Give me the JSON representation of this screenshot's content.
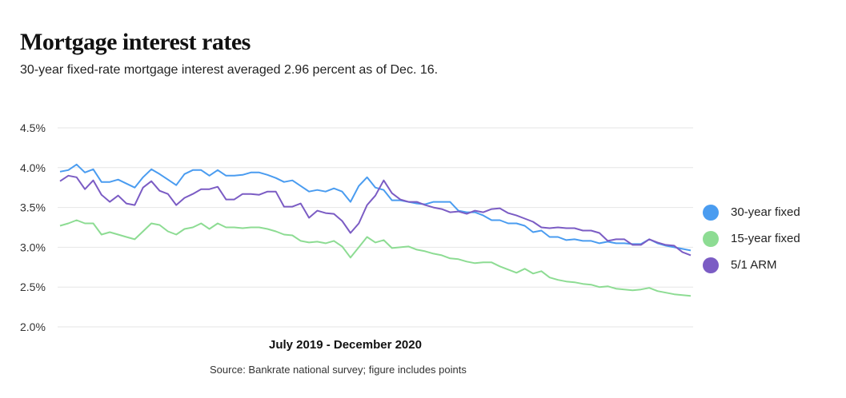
{
  "title": "Mortgage interest rates",
  "subtitle": "30-year fixed-rate mortgage interest averaged 2.96 percent as of Dec. 16.",
  "source": "Source: Bankrate national survey; figure includes points",
  "chart_data": {
    "type": "line",
    "title": "Mortgage interest rates",
    "subtitle": "30-year fixed-rate mortgage interest averaged 2.96 percent as of Dec. 16.",
    "xlabel": "July 2019 - December 2020",
    "ylabel": "",
    "ylim": [
      2.0,
      4.5
    ],
    "yticks": [
      4.5,
      4.0,
      3.5,
      3.0,
      2.5,
      2.0
    ],
    "ytick_labels": [
      "4.5%",
      "4.0%",
      "3.5%",
      "3.0%",
      "2.5%",
      "2.0%"
    ],
    "grid": true,
    "legend_position": "right",
    "series": [
      {
        "name": "30-year fixed",
        "color": "#4a9cf0",
        "values": [
          3.95,
          3.97,
          4.04,
          3.94,
          3.98,
          3.82,
          3.82,
          3.85,
          3.8,
          3.75,
          3.88,
          3.98,
          3.92,
          3.85,
          3.78,
          3.92,
          3.97,
          3.97,
          3.9,
          3.97,
          3.9,
          3.9,
          3.91,
          3.94,
          3.94,
          3.91,
          3.87,
          3.82,
          3.84,
          3.77,
          3.7,
          3.72,
          3.7,
          3.74,
          3.7,
          3.57,
          3.77,
          3.88,
          3.75,
          3.72,
          3.59,
          3.59,
          3.57,
          3.55,
          3.54,
          3.57,
          3.57,
          3.57,
          3.46,
          3.44,
          3.44,
          3.4,
          3.34,
          3.34,
          3.3,
          3.3,
          3.27,
          3.19,
          3.21,
          3.13,
          3.13,
          3.09,
          3.1,
          3.08,
          3.08,
          3.05,
          3.07,
          3.05,
          3.05,
          3.04,
          3.04,
          3.1,
          3.05,
          3.02,
          3.0,
          2.98,
          2.96
        ]
      },
      {
        "name": "15-year fixed",
        "color": "#8ddc93",
        "values": [
          3.27,
          3.3,
          3.34,
          3.3,
          3.3,
          3.16,
          3.19,
          3.16,
          3.13,
          3.1,
          3.2,
          3.3,
          3.28,
          3.2,
          3.16,
          3.23,
          3.25,
          3.3,
          3.23,
          3.3,
          3.25,
          3.25,
          3.24,
          3.25,
          3.25,
          3.23,
          3.2,
          3.16,
          3.15,
          3.08,
          3.06,
          3.07,
          3.05,
          3.08,
          3.01,
          2.87,
          3.0,
          3.13,
          3.06,
          3.09,
          2.99,
          3.0,
          3.01,
          2.97,
          2.95,
          2.92,
          2.9,
          2.86,
          2.85,
          2.82,
          2.8,
          2.81,
          2.81,
          2.76,
          2.72,
          2.68,
          2.73,
          2.67,
          2.7,
          2.62,
          2.59,
          2.57,
          2.56,
          2.54,
          2.53,
          2.5,
          2.51,
          2.48,
          2.47,
          2.46,
          2.47,
          2.49,
          2.45,
          2.43,
          2.41,
          2.4,
          2.39
        ]
      },
      {
        "name": "5/1 ARM",
        "color": "#7b5cc4",
        "values": [
          3.83,
          3.9,
          3.88,
          3.73,
          3.84,
          3.66,
          3.57,
          3.65,
          3.55,
          3.53,
          3.75,
          3.83,
          3.71,
          3.67,
          3.53,
          3.62,
          3.67,
          3.73,
          3.73,
          3.76,
          3.6,
          3.6,
          3.67,
          3.67,
          3.66,
          3.7,
          3.7,
          3.51,
          3.51,
          3.55,
          3.37,
          3.46,
          3.43,
          3.42,
          3.33,
          3.18,
          3.3,
          3.53,
          3.65,
          3.84,
          3.68,
          3.6,
          3.57,
          3.57,
          3.53,
          3.5,
          3.48,
          3.44,
          3.45,
          3.42,
          3.46,
          3.44,
          3.48,
          3.49,
          3.43,
          3.4,
          3.36,
          3.32,
          3.25,
          3.24,
          3.25,
          3.24,
          3.24,
          3.21,
          3.21,
          3.18,
          3.08,
          3.1,
          3.1,
          3.03,
          3.03,
          3.1,
          3.06,
          3.03,
          3.02,
          2.94,
          2.9
        ]
      }
    ]
  }
}
